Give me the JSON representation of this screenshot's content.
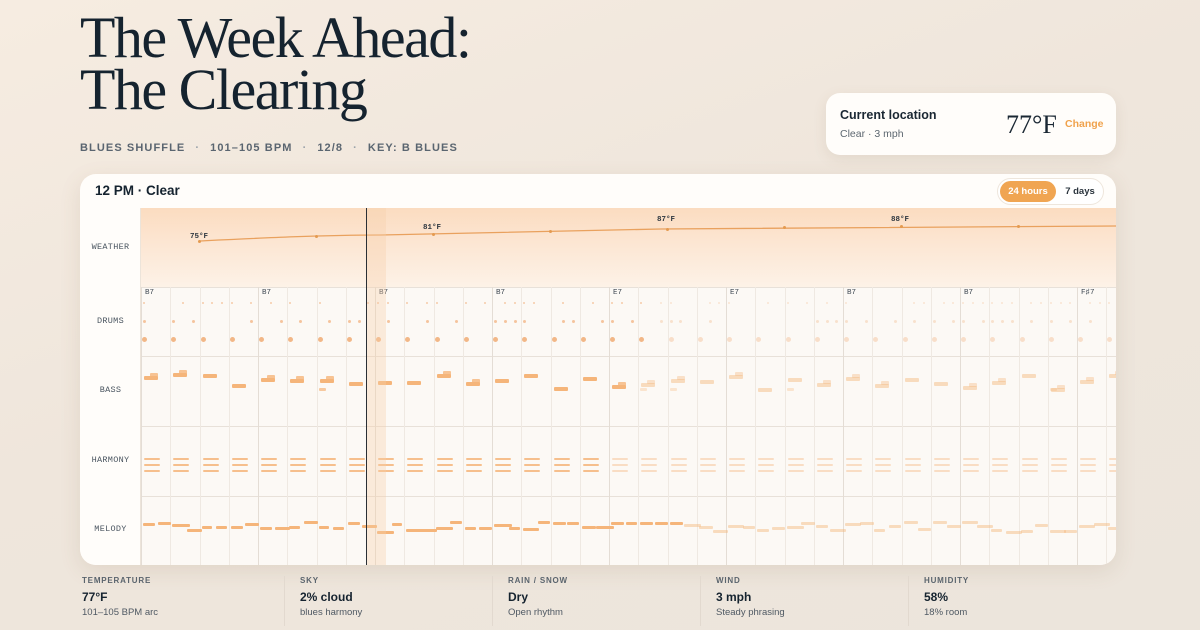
{
  "title": {
    "line1": "The Week Ahead:",
    "line2": "The Clearing"
  },
  "meta": {
    "style": "BLUES SHUFFLE",
    "bpm": "101–105 BPM",
    "meter": "12/8",
    "key": "KEY: B BLUES",
    "sep": "·"
  },
  "location": {
    "title": "Current location",
    "subtitle": "Clear · 3 mph",
    "temp": "77°F",
    "change": "Change"
  },
  "card": {
    "title": "12 PM · Clear",
    "toggle": [
      {
        "label": "24 hours",
        "active": true
      },
      {
        "label": "7 days",
        "active": false
      }
    ]
  },
  "lanes": [
    "WEATHER",
    "DRUMS",
    "BASS",
    "HARMONY",
    "MELODY"
  ],
  "weather_labels": [
    "75°F",
    "81°F",
    "87°F",
    "88°F"
  ],
  "chords": [
    "B7",
    "B7",
    "B7",
    "B7",
    "E7",
    "E7",
    "B7",
    "B7",
    "F♯7"
  ],
  "stats": [
    {
      "label": "TEMPERATURE",
      "value": "77°F",
      "sub": "101–105 BPM arc"
    },
    {
      "label": "SKY",
      "value": "2% cloud",
      "sub": "blues harmony"
    },
    {
      "label": "RAIN / SNOW",
      "value": "Dry",
      "sub": "Open rhythm"
    },
    {
      "label": "WIND",
      "value": "3 mph",
      "sub": "Steady phrasing"
    },
    {
      "label": "HUMIDITY",
      "value": "58%",
      "sub": "18% room"
    }
  ],
  "colors": {
    "accent": "#f0a552",
    "text": "#15232f",
    "note": "#f5b57a"
  }
}
